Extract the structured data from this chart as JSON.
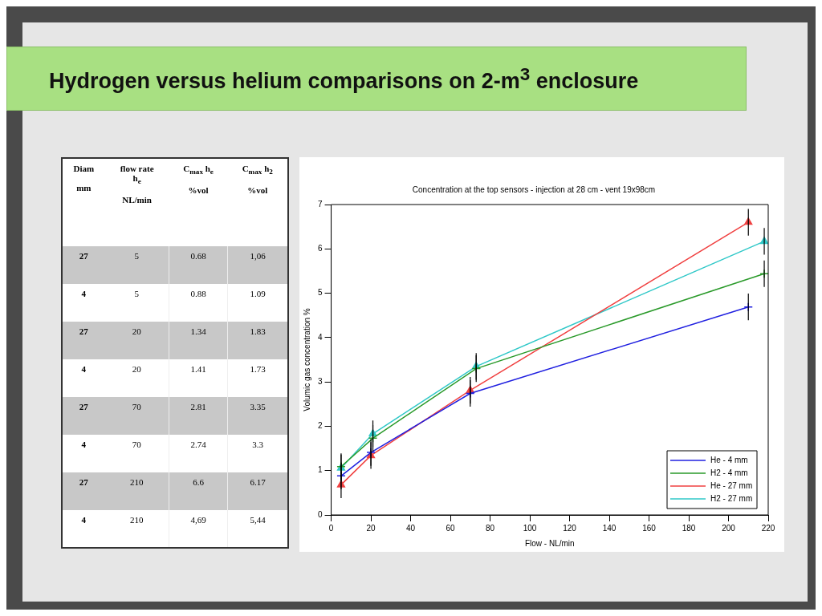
{
  "chart_data": [
    {
      "type": "other",
      "title": "Hydrogen versus helium comparisons on 2-m$^{3}$ enclosure",
      "annotations": [
        "Diam\n\nmm",
        "flow rate\nh$_{e}$\n\nNL/min",
        "C$_{max}$ h$_{e}$\n\n%vol",
        "C$_{max}$ h$_{2}$\n\n%vol",
        "27",
        "5",
        "0.68",
        "1,06",
        "4",
        "5",
        "0.88",
        "1.09",
        "27",
        "20",
        "1.34",
        "1.83",
        "4",
        "20",
        "1.41",
        "1.73",
        "27",
        "70",
        "2.81",
        "3.35",
        "4",
        "70",
        "2.74",
        "3.3",
        "27",
        "210",
        "6.6",
        "6.17",
        "4",
        "210",
        "4,69",
        "5,44"
      ]
    },
    {
      "type": "line",
      "title": "Concentration at the top sensors - injection at 28 cm - vent 19x98cm",
      "xlabel": "Flow - NL/min",
      "ylabel": "Volumic gas concentration %",
      "xlim": [
        0,
        220
      ],
      "xticks": [
        0,
        20,
        40,
        60,
        80,
        100,
        120,
        140,
        160,
        180,
        200,
        220
      ],
      "ylim": [
        0,
        7
      ],
      "yticks": [
        0,
        1,
        2,
        3,
        4,
        5,
        6,
        7
      ],
      "legend": "bottom right",
      "series": [
        {
          "name": "He - 4 mm",
          "color": "#2020e0",
          "marker": "cross",
          "x": [
            5,
            20,
            70,
            210
          ],
          "values": [
            0.88,
            1.41,
            2.74,
            4.69
          ],
          "errors": [
            0.3,
            0.3,
            0.3,
            0.3
          ]
        },
        {
          "name": "H2 - 4 mm",
          "color": "#2a9a2a",
          "marker": "cross",
          "x": [
            5,
            21,
            73,
            218
          ],
          "values": [
            1.09,
            1.73,
            3.3,
            5.44
          ],
          "errors": [
            0.3,
            0.3,
            0.3,
            0.3
          ]
        },
        {
          "name": "He - 27 mm",
          "color": "#f04040",
          "marker": "triangle",
          "x": [
            5,
            20,
            70,
            210
          ],
          "values": [
            0.68,
            1.34,
            2.81,
            6.6
          ],
          "errors": [
            0.3,
            0.3,
            0.3,
            0.3
          ]
        },
        {
          "name": "H2 - 27 mm",
          "color": "#30c8c8",
          "marker": "triangle",
          "x": [
            5,
            21,
            73,
            218
          ],
          "values": [
            1.06,
            1.83,
            3.35,
            6.17
          ],
          "errors": [
            0.3,
            0.3,
            0.3,
            0.3
          ]
        }
      ]
    }
  ]
}
